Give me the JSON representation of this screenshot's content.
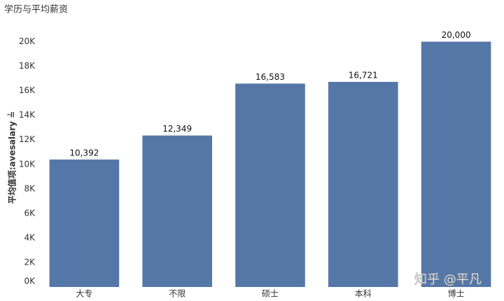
{
  "chart_data": {
    "type": "bar",
    "title": "学历与平均薪资",
    "y_label": "平均值项:avesalary ≟",
    "categories": [
      "大专",
      "不限",
      "硕士",
      "本科",
      "博士"
    ],
    "values": [
      10392,
      12349,
      16583,
      16721,
      20000
    ],
    "value_labels": [
      "10,392",
      "12,349",
      "16,583",
      "16,721",
      "20,000"
    ],
    "color": "#5577a8",
    "ylim": [
      0,
      21000
    ],
    "yticks": [
      {
        "value": 0,
        "label": "0K"
      },
      {
        "value": 2000,
        "label": "2K"
      },
      {
        "value": 4000,
        "label": "4K"
      },
      {
        "value": 6000,
        "label": "6K"
      },
      {
        "value": 8000,
        "label": "8K"
      },
      {
        "value": 10000,
        "label": "10K"
      },
      {
        "value": 12000,
        "label": "12K"
      },
      {
        "value": 14000,
        "label": "14K"
      },
      {
        "value": 16000,
        "label": "16K"
      },
      {
        "value": 18000,
        "label": "18K"
      },
      {
        "value": 20000,
        "label": "20K"
      }
    ],
    "grid": false
  },
  "watermark": "知乎 @平凡"
}
